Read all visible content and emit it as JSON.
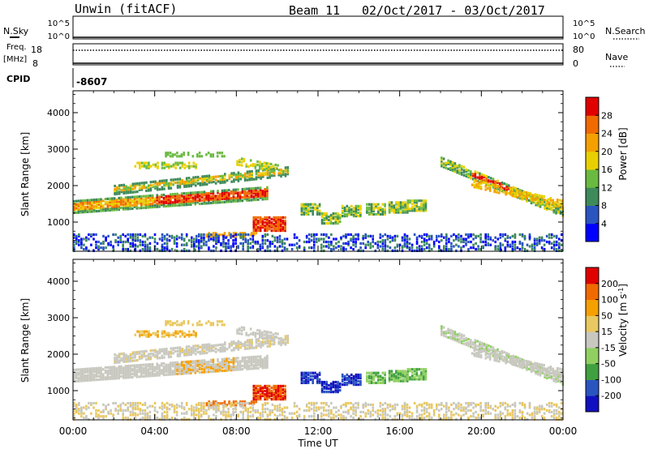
{
  "header": {
    "title": "Unwin (fitACF)",
    "beam": "Beam 11",
    "date_range": "02/Oct/2017 - 03/Oct/2017"
  },
  "top_panels": {
    "nsky_label": "N.Sky",
    "nsky_ticks": [
      "10^5",
      "10^0"
    ],
    "nsearch_label": "N.Search",
    "nsearch_ticks": [
      "10^5",
      "10^0"
    ],
    "freq_label_1": "Freq.",
    "freq_label_2": "[MHz]",
    "freq_ticks": [
      "18",
      "8"
    ],
    "nave_label": "Nave",
    "nave_ticks": [
      "80",
      "0"
    ],
    "cpid_label": "CPID",
    "cpid_value": "-8607"
  },
  "chart_data": [
    {
      "type": "heatmap",
      "name": "power",
      "ylabel": "Slant Range [km]",
      "y_ticks": [
        "4000",
        "3000",
        "2000",
        "1000"
      ],
      "y_range": [
        200,
        4600
      ],
      "colorbar_label": "Power [dB]",
      "colorbar_ticks": [
        "28",
        "24",
        "20",
        "16",
        "12",
        "8",
        "4"
      ],
      "colors": [
        "#0000ff",
        "#2a55c0",
        "#3e8a5a",
        "#6aba40",
        "#e8d000",
        "#f4a000",
        "#f06a00",
        "#e00000"
      ]
    },
    {
      "type": "heatmap",
      "name": "velocity",
      "ylabel": "Slant Range [km]",
      "y_ticks": [
        "4000",
        "3000",
        "2000",
        "1000"
      ],
      "y_range": [
        200,
        4600
      ],
      "xlabel": "Time UT",
      "x_ticks": [
        "00:00",
        "04:00",
        "08:00",
        "12:00",
        "16:00",
        "20:00",
        "00:00"
      ],
      "colorbar_label": "Velocity [m s",
      "colorbar_label_sup": "-1",
      "colorbar_ticks": [
        "200",
        "100",
        "50",
        "15",
        "-15",
        "-50",
        "-100",
        "-200"
      ],
      "colors": [
        "#e00000",
        "#f06a00",
        "#f4a000",
        "#e8c860",
        "#c8c8c0",
        "#90d060",
        "#40a040",
        "#2a55c0",
        "#1010c0"
      ]
    }
  ]
}
